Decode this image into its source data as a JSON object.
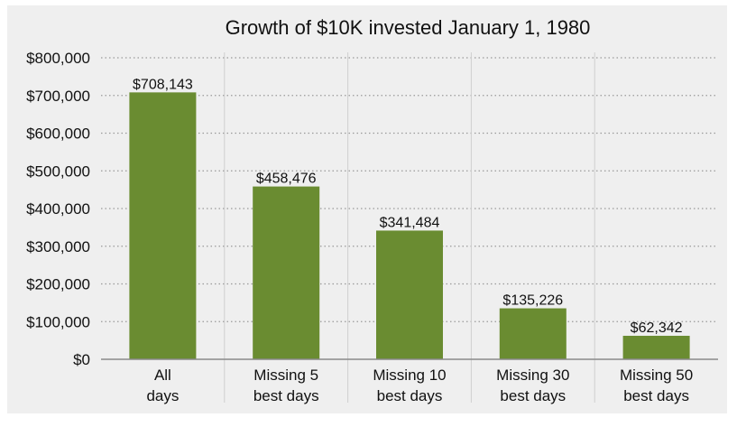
{
  "colors": {
    "panel_background": "#efefef",
    "bar": "#6a8c31",
    "text": "#111111",
    "gridline": "#9a9a9a",
    "separator": "#cfcfcf",
    "axis": "#8a8a8a"
  },
  "chart_data": {
    "type": "bar",
    "title": "Growth of $10K invested January 1, 1980",
    "xlabel": "",
    "ylabel": "",
    "ylim": [
      0,
      800000
    ],
    "yticks": [
      0,
      100000,
      200000,
      300000,
      400000,
      500000,
      600000,
      700000,
      800000
    ],
    "ytick_labels": [
      "$0",
      "$100,000",
      "$200,000",
      "$300,000",
      "$400,000",
      "$500,000",
      "$600,000",
      "$700,000",
      "$800,000"
    ],
    "grid": "horizontal-dotted",
    "categories": [
      [
        "All",
        "days"
      ],
      [
        "Missing 5",
        "best days"
      ],
      [
        "Missing 10",
        "best days"
      ],
      [
        "Missing 30",
        "best days"
      ],
      [
        "Missing 50",
        "best days"
      ]
    ],
    "values": [
      708143,
      458476,
      341484,
      135226,
      62342
    ],
    "value_labels": [
      "$708,143",
      "$458,476",
      "$341,484",
      "$135,226",
      "$62,342"
    ]
  }
}
